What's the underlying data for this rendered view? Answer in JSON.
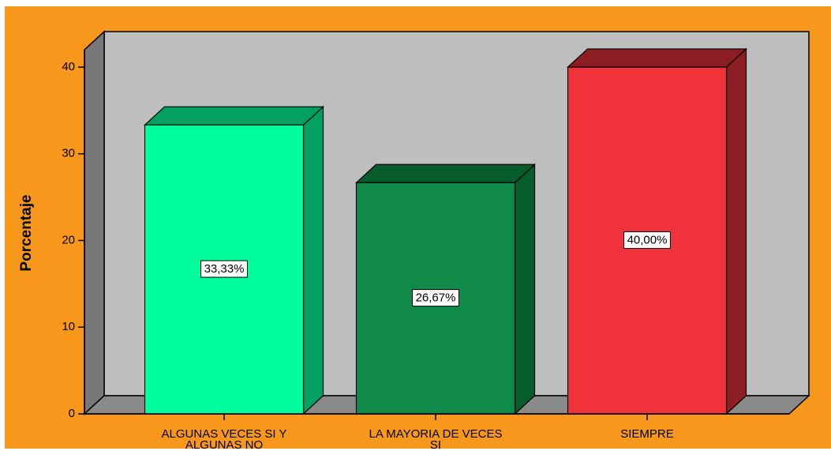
{
  "chart_data": {
    "type": "bar3d",
    "y_label": "Porcentaje",
    "categories": [
      "ALGUNAS VECES SI Y ALGUNAS NO",
      "LA MAYORIA DE VECES SI",
      "SIEMPRE"
    ],
    "values": [
      33.33,
      26.67,
      40
    ],
    "value_labels": [
      "33,33%",
      "26,67%",
      "40,00%"
    ],
    "colors": [
      "#00FF9C",
      "#108A48",
      "#F0333A"
    ],
    "side_colors": [
      "#00A062",
      "#075C2C",
      "#8C1D23"
    ],
    "ylim": [
      0,
      42
    ],
    "yticks": [
      0,
      10,
      20,
      30,
      40
    ]
  }
}
